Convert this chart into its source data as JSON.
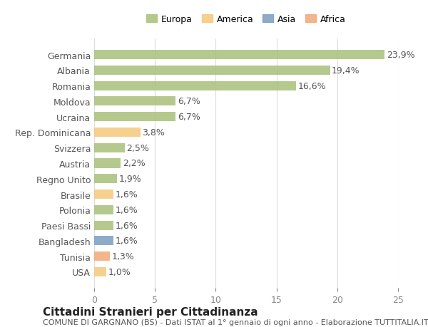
{
  "categories": [
    "Germania",
    "Albania",
    "Romania",
    "Moldova",
    "Ucraina",
    "Rep. Dominicana",
    "Svizzera",
    "Austria",
    "Regno Unito",
    "Brasile",
    "Polonia",
    "Paesi Bassi",
    "Bangladesh",
    "Tunisia",
    "USA"
  ],
  "values": [
    23.9,
    19.4,
    16.6,
    6.7,
    6.7,
    3.8,
    2.5,
    2.2,
    1.9,
    1.6,
    1.6,
    1.6,
    1.6,
    1.3,
    1.0
  ],
  "colors": [
    "#a8c07a",
    "#a8c07a",
    "#a8c07a",
    "#a8c07a",
    "#a8c07a",
    "#f5c87a",
    "#a8c07a",
    "#a8c07a",
    "#a8c07a",
    "#f5c87a",
    "#a8c07a",
    "#a8c07a",
    "#7a9ec0",
    "#f0a878",
    "#f5c87a"
  ],
  "labels": [
    "23,9%",
    "19,4%",
    "16,6%",
    "6,7%",
    "6,7%",
    "3,8%",
    "2,5%",
    "2,2%",
    "1,9%",
    "1,6%",
    "1,6%",
    "1,6%",
    "1,6%",
    "1,3%",
    "1,0%"
  ],
  "legend": [
    {
      "label": "Europa",
      "color": "#a8c07a"
    },
    {
      "label": "America",
      "color": "#f5c87a"
    },
    {
      "label": "Asia",
      "color": "#7a9ec0"
    },
    {
      "label": "Africa",
      "color": "#f0a878"
    }
  ],
  "xlim": [
    0,
    25
  ],
  "xticks": [
    0,
    5,
    10,
    15,
    20,
    25
  ],
  "title": "Cittadini Stranieri per Cittadinanza",
  "subtitle": "COMUNE DI GARGNANO (BS) - Dati ISTAT al 1° gennaio di ogni anno - Elaborazione TUTTITALIA.IT",
  "bg_color": "#ffffff",
  "grid_color": "#dddddd",
  "bar_height": 0.6,
  "label_fontsize": 9,
  "tick_fontsize": 9,
  "title_fontsize": 11,
  "subtitle_fontsize": 8
}
